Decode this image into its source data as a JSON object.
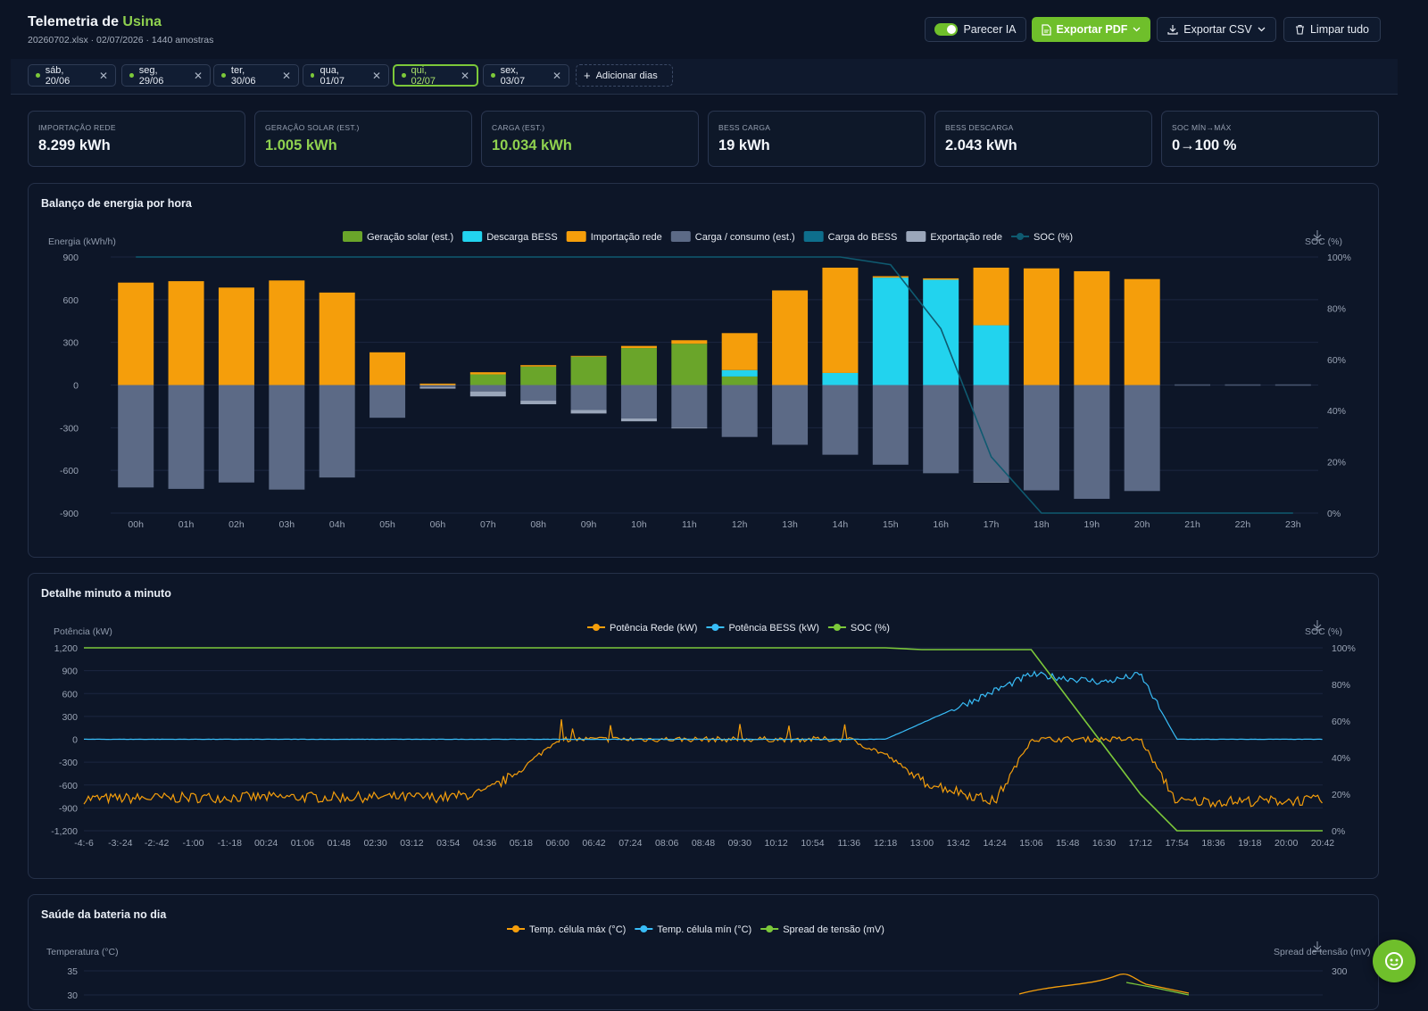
{
  "header": {
    "title_prefix": "Telemetria de",
    "title_brand": "Usina",
    "subtitle": "20260702.xlsx · 02/07/2026 · 1440 amostras",
    "toggle_label": "Parecer IA",
    "export_pdf": "Exportar PDF",
    "export_csv": "Exportar CSV",
    "clear_all": "Limpar tudo"
  },
  "days": [
    "sáb, 20/06",
    "seg, 29/06",
    "ter, 30/06",
    "qua, 01/07",
    "qui, 02/07",
    "sex, 03/07"
  ],
  "active_day": "qui, 02/07",
  "add_days": "Adicionar dias",
  "kpis": [
    {
      "label": "Importação rede",
      "value": "8.299 kWh"
    },
    {
      "label": "Geração solar (est.)",
      "value": "1.005 kWh"
    },
    {
      "label": "Carga (est.)",
      "value": "10.034 kWh"
    },
    {
      "label": "BESS carga",
      "value": "19 kWh"
    },
    {
      "label": "BESS descarga",
      "value": "2.043 kWh"
    },
    {
      "label": "SOC mín→máx",
      "value": "0→100 %"
    }
  ],
  "colors": {
    "solar": "#6aa52a",
    "bess_discharge": "#22d3ee",
    "grid_import": "#f59e0b",
    "load": "#5c6a86",
    "bess_charge": "#0e6e8c",
    "grid_export": "#9aa6ba",
    "soc_line": "#0f5a70",
    "grid_power": "#f59e0b",
    "bess_power": "#38bdf8",
    "soc_minute": "#7cc83a"
  },
  "panels": {
    "hourly_title": "Balanço de energia por hora",
    "minute_title": "Detalhe minuto a minuto",
    "health_title": "Saúde da bateria no dia"
  },
  "chart_data": [
    {
      "type": "bar",
      "title": "Balanço de energia por hora",
      "ylabel": "Energia (kWh/h)",
      "y2label": "SOC (%)",
      "ylim": [
        -900,
        900
      ],
      "y_ticks": [
        900,
        600,
        300,
        0,
        -300,
        -600,
        -900
      ],
      "y2lim": [
        0,
        100
      ],
      "y2_ticks": [
        "100%",
        "80%",
        "60%",
        "40%",
        "20%",
        "0%"
      ],
      "categories": [
        "00h",
        "01h",
        "02h",
        "03h",
        "04h",
        "05h",
        "06h",
        "07h",
        "08h",
        "09h",
        "10h",
        "11h",
        "12h",
        "13h",
        "14h",
        "15h",
        "16h",
        "17h",
        "18h",
        "19h",
        "20h",
        "21h",
        "22h",
        "23h"
      ],
      "legend": [
        "Geração solar (est.)",
        "Descarga BESS",
        "Importação rede",
        "Carga / consumo (est.)",
        "Carga do BESS",
        "Exportação rede",
        "SOC (%)"
      ],
      "series": [
        {
          "name": "Geração solar (est.)",
          "values": [
            0,
            0,
            0,
            0,
            0,
            0,
            0,
            75,
            130,
            200,
            260,
            290,
            60,
            0,
            0,
            0,
            0,
            0,
            0,
            0,
            0,
            0,
            0,
            0
          ]
        },
        {
          "name": "Descarga BESS",
          "values": [
            0,
            0,
            0,
            0,
            0,
            0,
            0,
            0,
            0,
            0,
            0,
            0,
            45,
            0,
            85,
            755,
            740,
            420,
            0,
            0,
            0,
            0,
            0,
            0
          ]
        },
        {
          "name": "Importação rede",
          "values": [
            720,
            730,
            685,
            735,
            650,
            230,
            10,
            15,
            10,
            5,
            15,
            25,
            260,
            665,
            740,
            10,
            10,
            405,
            820,
            800,
            745,
            0,
            0,
            0
          ]
        },
        {
          "name": "Carga / consumo (est.)",
          "values": [
            -720,
            -730,
            -685,
            -735,
            -650,
            -230,
            -15,
            -45,
            -110,
            -175,
            -235,
            -300,
            -365,
            -420,
            -490,
            -560,
            -620,
            -680,
            -740,
            -800,
            -745,
            0,
            0,
            0
          ]
        },
        {
          "name": "Exportação rede",
          "values": [
            0,
            0,
            0,
            0,
            0,
            0,
            -10,
            -35,
            -25,
            -25,
            -20,
            -5,
            0,
            0,
            0,
            0,
            0,
            -5,
            0,
            0,
            0,
            0,
            0,
            0
          ]
        },
        {
          "name": "SOC (%)",
          "values": [
            100,
            100,
            100,
            100,
            100,
            100,
            100,
            100,
            100,
            100,
            100,
            100,
            100,
            100,
            100,
            97,
            72,
            22,
            0,
            0,
            0,
            0,
            0,
            0
          ]
        }
      ]
    },
    {
      "type": "line",
      "title": "Detalhe minuto a minuto",
      "ylabel": "Potência (kW)",
      "y2label": "SOC (%)",
      "ylim": [
        -1200,
        1200
      ],
      "y_ticks": [
        "1,200",
        "900",
        "600",
        "300",
        "0",
        "-300",
        "-600",
        "-900",
        "-1,200"
      ],
      "y2_ticks": [
        "100%",
        "80%",
        "60%",
        "40%",
        "20%",
        "0%"
      ],
      "x_ticks": [
        "-4:-6",
        "-3:-24",
        "-2:-42",
        "-1:00",
        "-1:-18",
        "00:24",
        "01:06",
        "01:48",
        "02:30",
        "03:12",
        "03:54",
        "04:36",
        "05:18",
        "06:00",
        "06:42",
        "07:24",
        "08:06",
        "08:48",
        "09:30",
        "10:12",
        "10:54",
        "11:36",
        "12:18",
        "13:00",
        "13:42",
        "14:24",
        "15:06",
        "15:48",
        "16:30",
        "17:12",
        "17:54",
        "18:36",
        "19:18",
        "20:00",
        "20:42"
      ],
      "legend": [
        "Potência Rede (kW)",
        "Potência BESS (kW)",
        "SOC (%)"
      ],
      "series": [
        {
          "name": "Potência Rede (kW)",
          "x": [
            "-4:-6",
            "-1:-18",
            "03:54",
            "04:36",
            "05:18",
            "06:00",
            "11:36",
            "12:18",
            "13:00",
            "14:24",
            "15:06",
            "17:12",
            "17:54",
            "20:42"
          ],
          "values": [
            -780,
            -760,
            -760,
            -700,
            -400,
            0,
            0,
            -200,
            -550,
            -820,
            0,
            0,
            -820,
            -800
          ]
        },
        {
          "name": "Potência BESS (kW)",
          "x": [
            "-4:-6",
            "12:18",
            "15:06",
            "16:30",
            "17:12",
            "17:54",
            "20:42"
          ],
          "values": [
            0,
            0,
            850,
            750,
            850,
            0,
            0
          ]
        },
        {
          "name": "SOC (%)",
          "x": [
            "-4:-6",
            "12:18",
            "13:00",
            "14:24",
            "15:06",
            "17:12",
            "17:54",
            "20:42"
          ],
          "values": [
            100,
            100,
            99,
            99,
            99,
            20,
            0,
            0
          ]
        }
      ]
    },
    {
      "type": "line",
      "title": "Saúde da bateria no dia",
      "ylabel": "Temperatura (°C)",
      "y2label": "Spread de tensão (mV)",
      "y_ticks": [
        "35",
        "30"
      ],
      "y2_ticks": [
        "300"
      ],
      "legend": [
        "Temp. célula máx (°C)",
        "Temp. célula mín (°C)",
        "Spread de tensão (mV)"
      ]
    }
  ]
}
